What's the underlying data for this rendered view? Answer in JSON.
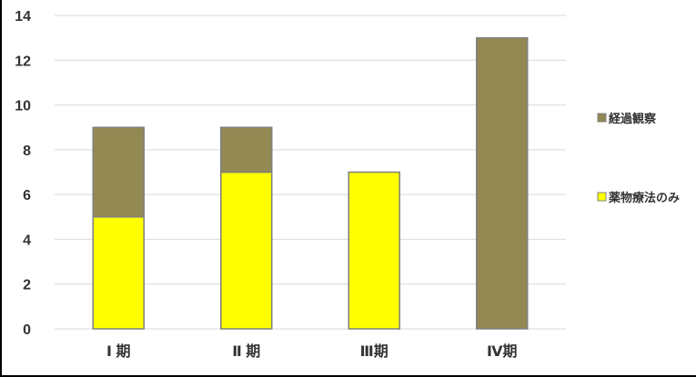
{
  "chart_data": {
    "type": "bar",
    "stacked": true,
    "categories": [
      "Ⅰ 期",
      "Ⅱ 期",
      "Ⅲ期",
      "Ⅳ期"
    ],
    "series": [
      {
        "name": "薬物療法のみ",
        "values": [
          5,
          7,
          7,
          0
        ],
        "color": "#FFFF00"
      },
      {
        "name": "経過観察",
        "values": [
          4,
          2,
          0,
          13
        ],
        "color": "#938953"
      }
    ],
    "ylim": [
      0,
      14
    ],
    "yticks": [
      0,
      2,
      4,
      6,
      8,
      10,
      12,
      14
    ],
    "grid": true,
    "legend": "right",
    "legend_order": [
      "経過観察",
      "薬物療法のみ"
    ],
    "bar_outline_color": "#808080",
    "gridline_color": "#D9D9D9"
  }
}
